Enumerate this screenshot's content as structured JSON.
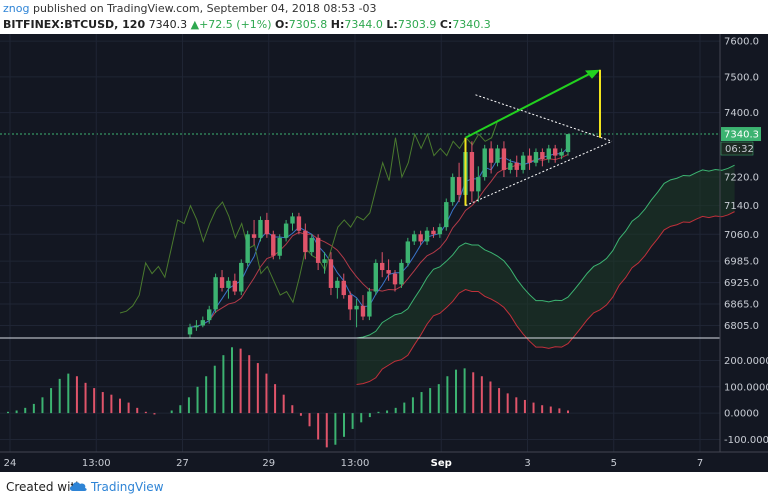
{
  "header": {
    "author": "znog",
    "published_text": "published on TradingView.com, September 04, 2018 08:53 -03",
    "symbol": "BITFINEX:BTCUSD, 120",
    "last": "7340.3",
    "change": "+72.5 (+1%)",
    "o_label": "O:",
    "o_value": "7305.8",
    "h_label": "H:",
    "h_value": "7344.0",
    "l_label": "L:",
    "l_value": "7303.9",
    "c_label": "C:",
    "c_value": "7340.3"
  },
  "footer": {
    "created_with": "Created with",
    "brand": "TradingView"
  },
  "colors": {
    "background": "#131722",
    "bull": "#3cb371",
    "bear": "#e0546a",
    "cloud": "#1e3a26",
    "trend_green": "#22d11f",
    "yellow": "#f2e51d",
    "price_line": "#3cb371"
  },
  "chart_data": [
    {
      "type": "candlestick",
      "symbol": "BITFINEX:BTCUSD",
      "interval": "120",
      "price_axis": [
        "7600.0",
        "7500.0",
        "7400.0",
        "7340.3",
        "7220.0",
        "7140.0",
        "7060.0",
        "6985.0",
        "6925.0",
        "6865.0",
        "6805.0"
      ],
      "time_axis": [
        "24",
        "13:00",
        "27",
        "29",
        "13:00",
        "Sep",
        "3",
        "5",
        "7"
      ],
      "ylim": [
        6770,
        7620
      ],
      "last_price": 7340.3,
      "countdown": "06:32",
      "candles": [
        [
          6780,
          6810,
          6770,
          6800
        ],
        [
          6800,
          6820,
          6790,
          6805
        ],
        [
          6805,
          6830,
          6800,
          6820
        ],
        [
          6820,
          6860,
          6810,
          6850
        ],
        [
          6850,
          6950,
          6840,
          6940
        ],
        [
          6940,
          6960,
          6900,
          6910
        ],
        [
          6910,
          6940,
          6880,
          6930
        ],
        [
          6930,
          6950,
          6890,
          6900
        ],
        [
          6900,
          6990,
          6890,
          6980
        ],
        [
          6980,
          7070,
          6970,
          7060
        ],
        [
          7060,
          7100,
          7030,
          7050
        ],
        [
          7050,
          7110,
          7040,
          7100
        ],
        [
          7100,
          7120,
          7050,
          7060
        ],
        [
          7060,
          7070,
          6990,
          7000
        ],
        [
          7000,
          7060,
          6990,
          7050
        ],
        [
          7050,
          7100,
          7040,
          7090
        ],
        [
          7090,
          7120,
          7070,
          7110
        ],
        [
          7110,
          7120,
          7060,
          7070
        ],
        [
          7070,
          7090,
          6990,
          7010
        ],
        [
          7010,
          7060,
          7000,
          7050
        ],
        [
          7050,
          7060,
          6960,
          6980
        ],
        [
          6980,
          7010,
          6950,
          6990
        ],
        [
          6990,
          7010,
          6890,
          6910
        ],
        [
          6910,
          6940,
          6880,
          6930
        ],
        [
          6930,
          6950,
          6880,
          6890
        ],
        [
          6890,
          6900,
          6820,
          6850
        ],
        [
          6850,
          6880,
          6800,
          6860
        ],
        [
          6860,
          6890,
          6820,
          6830
        ],
        [
          6830,
          6910,
          6820,
          6900
        ],
        [
          6900,
          6990,
          6890,
          6980
        ],
        [
          6980,
          7010,
          6940,
          6960
        ],
        [
          6960,
          6990,
          6930,
          6950
        ],
        [
          6950,
          6960,
          6900,
          6920
        ],
        [
          6920,
          6990,
          6910,
          6980
        ],
        [
          6980,
          7050,
          6970,
          7040
        ],
        [
          7040,
          7070,
          7030,
          7060
        ],
        [
          7060,
          7070,
          7030,
          7040
        ],
        [
          7040,
          7080,
          7030,
          7070
        ],
        [
          7070,
          7080,
          7050,
          7060
        ],
        [
          7060,
          7090,
          7050,
          7080
        ],
        [
          7080,
          7160,
          7070,
          7150
        ],
        [
          7150,
          7230,
          7140,
          7220
        ],
        [
          7220,
          7260,
          7150,
          7170
        ],
        [
          7170,
          7300,
          7160,
          7290
        ],
        [
          7290,
          7320,
          7150,
          7180
        ],
        [
          7180,
          7250,
          7150,
          7220
        ],
        [
          7220,
          7310,
          7210,
          7300
        ],
        [
          7300,
          7320,
          7230,
          7260
        ],
        [
          7260,
          7310,
          7250,
          7300
        ],
        [
          7300,
          7320,
          7220,
          7240
        ],
        [
          7240,
          7270,
          7230,
          7260
        ],
        [
          7260,
          7280,
          7220,
          7240
        ],
        [
          7240,
          7290,
          7230,
          7280
        ],
        [
          7280,
          7300,
          7240,
          7260
        ],
        [
          7260,
          7300,
          7250,
          7290
        ],
        [
          7290,
          7300,
          7250,
          7270
        ],
        [
          7270,
          7310,
          7260,
          7300
        ],
        [
          7300,
          7310,
          7260,
          7280
        ],
        [
          7280,
          7300,
          7270,
          7290
        ],
        [
          7290,
          7340,
          7280,
          7340
        ]
      ],
      "oscillator": {
        "axis": [
          "200.0000",
          "100.0000",
          "0.0000",
          "-100.0000"
        ],
        "ylim": [
          -140,
          270
        ],
        "values": [
          5,
          10,
          20,
          35,
          60,
          95,
          130,
          150,
          140,
          115,
          95,
          80,
          70,
          55,
          40,
          20,
          5,
          -5,
          0,
          10,
          30,
          60,
          100,
          140,
          180,
          220,
          250,
          245,
          220,
          190,
          150,
          110,
          70,
          30,
          -10,
          -50,
          -100,
          -130,
          -120,
          -90,
          -60,
          -35,
          -15,
          5,
          10,
          20,
          40,
          60,
          80,
          95,
          110,
          140,
          165,
          170,
          155,
          140,
          120,
          95,
          75,
          60,
          50,
          40,
          30,
          25,
          18,
          10
        ]
      }
    }
  ]
}
